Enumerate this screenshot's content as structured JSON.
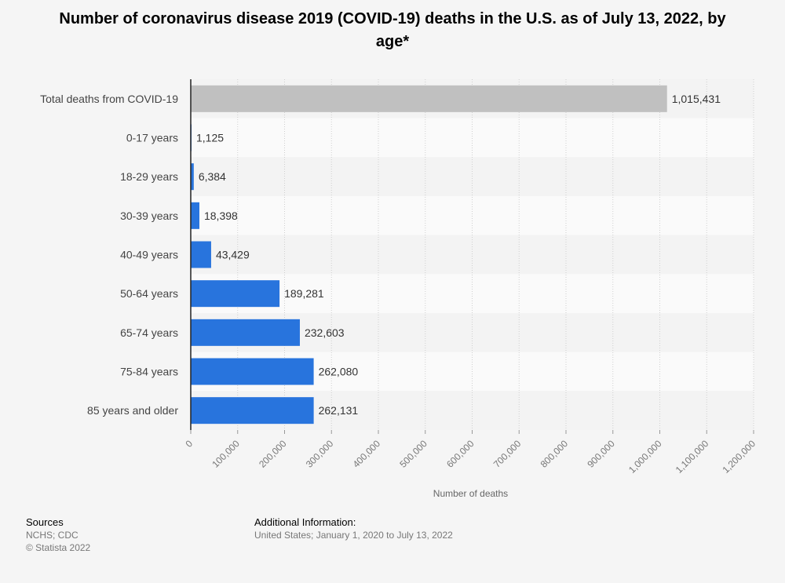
{
  "chart_data": {
    "type": "bar",
    "orientation": "horizontal",
    "title": "Number of coronavirus disease 2019 (COVID-19) deaths in the U.S. as of July 13, 2022, by age*",
    "categories": [
      "Total deaths from COVID-19",
      "0-17 years",
      "18-29 years",
      "30-39 years",
      "40-49 years",
      "50-64 years",
      "65-74 years",
      "75-84 years",
      "85 years and older"
    ],
    "values": [
      1015431,
      1125,
      6384,
      18398,
      43429,
      189281,
      232603,
      262080,
      262131
    ],
    "value_labels": [
      "1,015,431",
      "1,125",
      "6,384",
      "18,398",
      "43,429",
      "189,281",
      "232,603",
      "262,080",
      "262,131"
    ],
    "bar_colors": [
      "#c0c0c0",
      "#2874dd",
      "#2874dd",
      "#2874dd",
      "#2874dd",
      "#2874dd",
      "#2874dd",
      "#2874dd",
      "#2874dd"
    ],
    "xlabel": "Number of deaths",
    "ylabel": "",
    "xlim": [
      0,
      1200000
    ],
    "xticks": [
      0,
      100000,
      200000,
      300000,
      400000,
      500000,
      600000,
      700000,
      800000,
      900000,
      1000000,
      1100000,
      1200000
    ],
    "xtick_labels": [
      "0",
      "100,000",
      "200,000",
      "300,000",
      "400,000",
      "500,000",
      "600,000",
      "700,000",
      "800,000",
      "900,000",
      "1,000,000",
      "1,100,000",
      "1,200,000"
    ],
    "grid": true
  },
  "footer": {
    "sources_title": "Sources",
    "sources_line1": "NCHS; CDC",
    "sources_line2": "© Statista 2022",
    "info_title": "Additional Information:",
    "info_text": "United States; January 1, 2020 to July 13, 2022"
  }
}
